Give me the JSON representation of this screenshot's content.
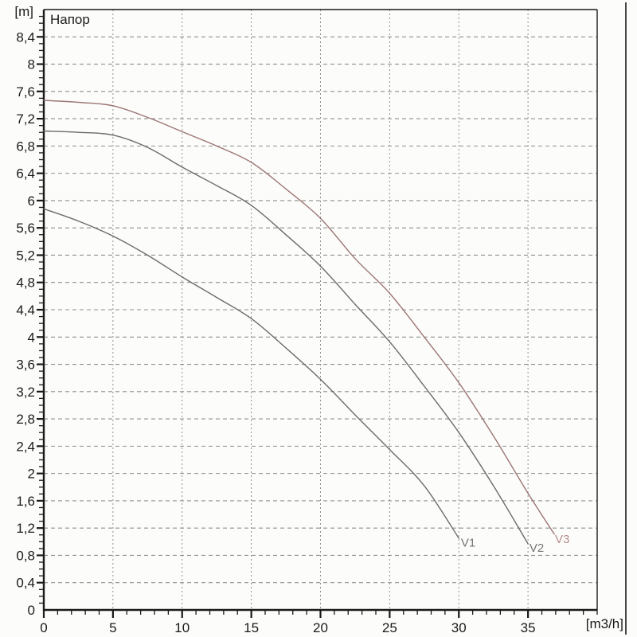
{
  "header": {
    "title": "Напор",
    "y_unit": "[m]",
    "x_unit": "[m3/h]"
  },
  "colors": {
    "background": "#fcfcfa",
    "axis": "#1a1a1a",
    "grid": "#8f8f8f",
    "text": "#1b1b1b",
    "curve_dark": "#6e6b69",
    "curve_red": "#9c7674",
    "label_gray": "#757575",
    "label_red": "#b68e8d",
    "edge_line": "#1a1a1a"
  },
  "chart_data": {
    "type": "line",
    "title": "Напор",
    "ylabel": "[m]",
    "xlabel": "[m3/h]",
    "xlim": [
      0,
      40
    ],
    "ylim": [
      0,
      8.8
    ],
    "grid": "dashed",
    "x_major_tick_step": 5,
    "x_minor_tick_step": 1,
    "y_major_tick_step": 0.4,
    "y_minor_tick_step": 0.1,
    "x_tick_labels": [
      "0",
      "5",
      "10",
      "15",
      "20",
      "25",
      "30",
      "35"
    ],
    "x_tick_values": [
      0,
      5,
      10,
      15,
      20,
      25,
      30,
      35
    ],
    "y_tick_labels": [
      "8,4",
      "8",
      "7,6",
      "7,2",
      "6,8",
      "6,4",
      "6",
      "5,6",
      "5,2",
      "4,8",
      "4,4",
      "4",
      "3,6",
      "3,2",
      "2,8",
      "2,4",
      "2",
      "1,6",
      "1,2",
      "0,8",
      "0,4",
      "0"
    ],
    "y_tick_values": [
      8.4,
      8.0,
      7.6,
      7.2,
      6.8,
      6.4,
      6.0,
      5.6,
      5.2,
      4.8,
      4.4,
      4.0,
      3.6,
      3.2,
      2.8,
      2.4,
      2.0,
      1.6,
      1.2,
      0.8,
      0.4,
      0
    ],
    "legend_position": "curve-end-labels",
    "series": [
      {
        "name": "V1",
        "color": "#6e6b69",
        "label_color": "#757575",
        "label_at": [
          30.15,
          0.93
        ],
        "points": [
          [
            0,
            5.88
          ],
          [
            2.5,
            5.7
          ],
          [
            5,
            5.48
          ],
          [
            7.5,
            5.2
          ],
          [
            10,
            4.88
          ],
          [
            12.5,
            4.58
          ],
          [
            15,
            4.27
          ],
          [
            17.5,
            3.84
          ],
          [
            20,
            3.38
          ],
          [
            22.5,
            2.86
          ],
          [
            25,
            2.35
          ],
          [
            27.5,
            1.82
          ],
          [
            30,
            1.05
          ]
        ]
      },
      {
        "name": "V2",
        "color": "#6e6b69",
        "label_color": "#757575",
        "label_at": [
          35.1,
          0.85
        ],
        "points": [
          [
            0,
            7.02
          ],
          [
            2.5,
            7.0
          ],
          [
            5,
            6.96
          ],
          [
            7.5,
            6.78
          ],
          [
            10,
            6.49
          ],
          [
            12.5,
            6.22
          ],
          [
            15,
            5.93
          ],
          [
            17.5,
            5.5
          ],
          [
            20,
            5.04
          ],
          [
            22.5,
            4.48
          ],
          [
            25,
            3.93
          ],
          [
            27.5,
            3.28
          ],
          [
            30,
            2.6
          ],
          [
            32.5,
            1.82
          ],
          [
            35,
            0.97
          ]
        ]
      },
      {
        "name": "V3",
        "color": "#9c7674",
        "label_color": "#b68e8d",
        "label_at": [
          36.95,
          0.98
        ],
        "points": [
          [
            0,
            7.47
          ],
          [
            2.5,
            7.44
          ],
          [
            5,
            7.39
          ],
          [
            7.5,
            7.22
          ],
          [
            10,
            7.01
          ],
          [
            12.5,
            6.8
          ],
          [
            15,
            6.56
          ],
          [
            17.5,
            6.17
          ],
          [
            20,
            5.74
          ],
          [
            22.5,
            5.15
          ],
          [
            25,
            4.64
          ],
          [
            27.5,
            4.0
          ],
          [
            30,
            3.33
          ],
          [
            32.5,
            2.55
          ],
          [
            35,
            1.71
          ],
          [
            36.9,
            1.11
          ]
        ]
      }
    ]
  }
}
